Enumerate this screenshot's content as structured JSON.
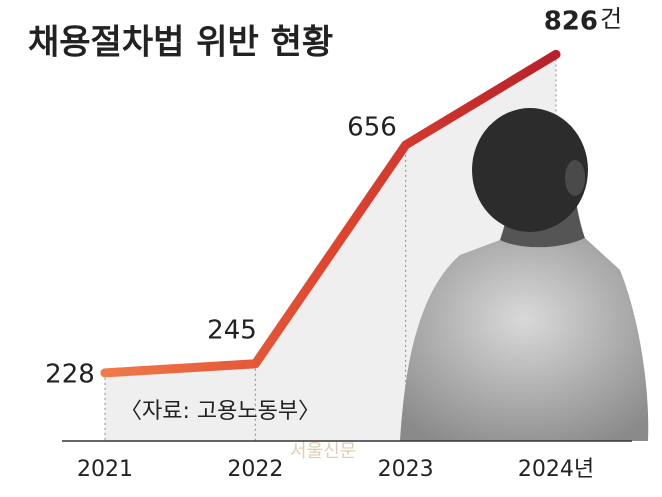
{
  "chart_data": {
    "type": "line",
    "title": "채용절차법 위반 현황",
    "categories": [
      "2021",
      "2022",
      "2023",
      "2024년"
    ],
    "values": [
      228,
      245,
      656,
      826
    ],
    "value_unit": "건",
    "ylim": [
      100,
      900
    ],
    "color": "#d9362c",
    "source": "〈자료: 고용노동부〉",
    "watermark": "서울신문"
  }
}
